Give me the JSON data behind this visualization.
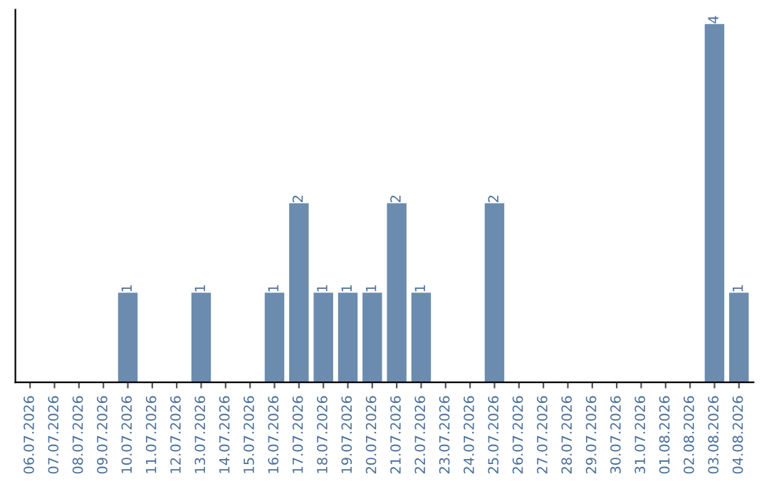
{
  "chart_data": {
    "type": "bar",
    "categories": [
      "06.07.2026",
      "07.07.2026",
      "08.07.2026",
      "09.07.2026",
      "10.07.2026",
      "11.07.2026",
      "12.07.2026",
      "13.07.2026",
      "14.07.2026",
      "15.07.2026",
      "16.07.2026",
      "17.07.2026",
      "18.07.2026",
      "19.07.2026",
      "20.07.2026",
      "21.07.2026",
      "22.07.2026",
      "23.07.2026",
      "24.07.2026",
      "25.07.2026",
      "26.07.2026",
      "27.07.2026",
      "28.07.2026",
      "29.07.2026",
      "30.07.2026",
      "31.07.2026",
      "01.08.2026",
      "02.08.2026",
      "03.08.2026",
      "04.08.2026"
    ],
    "values": [
      0,
      0,
      0,
      0,
      1,
      0,
      0,
      1,
      0,
      0,
      1,
      2,
      1,
      1,
      1,
      2,
      1,
      0,
      0,
      2,
      0,
      0,
      0,
      0,
      0,
      0,
      0,
      0,
      4,
      1
    ],
    "value_labels": [
      null,
      null,
      null,
      null,
      "1",
      null,
      null,
      "1",
      null,
      null,
      "1",
      "2",
      "1",
      "1",
      "1",
      "2",
      "1",
      null,
      null,
      "2",
      null,
      null,
      null,
      null,
      null,
      null,
      null,
      null,
      "4",
      "1"
    ],
    "color": "#6b8cae",
    "tick_labels": "x",
    "grid": false,
    "legend": false
  }
}
